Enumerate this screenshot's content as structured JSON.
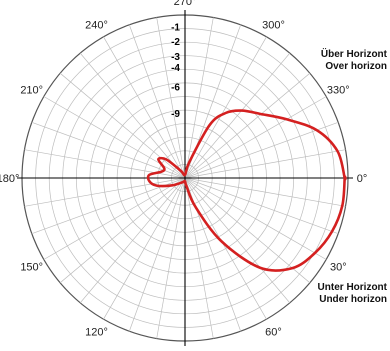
{
  "chart_data": {
    "type": "polar",
    "title": "",
    "angle_labels": [
      {
        "text": "270°",
        "angle": 270
      },
      {
        "text": "300°",
        "angle": 300
      },
      {
        "text": "330°",
        "angle": 330
      },
      {
        "text": "0°",
        "angle": 0
      },
      {
        "text": "30°",
        "angle": 30
      },
      {
        "text": "60°",
        "angle": 60
      },
      {
        "text": "90°",
        "angle": 90
      },
      {
        "text": "120°",
        "angle": 120
      },
      {
        "text": "150°",
        "angle": 150
      },
      {
        "text": "180°",
        "angle": 180
      },
      {
        "text": "210°",
        "angle": 210
      },
      {
        "text": "240°",
        "angle": 240
      }
    ],
    "radial_labels": [
      "-1",
      "-2",
      "-3",
      "-4",
      "-6",
      "-9"
    ],
    "annotations": {
      "upper": [
        "Über Horizont",
        "Over horizon"
      ],
      "lower": [
        "Unter Horizont",
        "Under horizon"
      ]
    },
    "colors": {
      "pattern": "#d42020",
      "grid": "#bdbdbd",
      "axis": "#000000"
    },
    "grid": true,
    "series": [
      {
        "values": [
          {
            "angle": 0,
            "r": 0.98
          },
          {
            "angle": 10,
            "r": 0.98
          },
          {
            "angle": 20,
            "r": 0.96
          },
          {
            "angle": 30,
            "r": 0.92
          },
          {
            "angle": 40,
            "r": 0.86
          },
          {
            "angle": 50,
            "r": 0.72
          },
          {
            "angle": 60,
            "r": 0.45
          },
          {
            "angle": 70,
            "r": 0.19
          },
          {
            "angle": 80,
            "r": 0.05
          },
          {
            "angle": 90,
            "r": 0.02
          },
          {
            "angle": 120,
            "r": 0.03
          },
          {
            "angle": 150,
            "r": 0.09
          },
          {
            "angle": 165,
            "r": 0.18
          },
          {
            "angle": 175,
            "r": 0.22
          },
          {
            "angle": 185,
            "r": 0.22
          },
          {
            "angle": 195,
            "r": 0.15
          },
          {
            "angle": 205,
            "r": 0.14
          },
          {
            "angle": 215,
            "r": 0.2
          },
          {
            "angle": 225,
            "r": 0.16
          },
          {
            "angle": 240,
            "r": 0.05
          },
          {
            "angle": 270,
            "r": 0.02
          },
          {
            "angle": 285,
            "r": 0.1
          },
          {
            "angle": 295,
            "r": 0.36
          },
          {
            "angle": 302,
            "r": 0.47
          },
          {
            "angle": 310,
            "r": 0.54
          },
          {
            "angle": 320,
            "r": 0.61
          },
          {
            "angle": 330,
            "r": 0.72
          },
          {
            "angle": 340,
            "r": 0.86
          },
          {
            "angle": 350,
            "r": 0.95
          },
          {
            "angle": 360,
            "r": 0.98
          }
        ]
      }
    ]
  }
}
